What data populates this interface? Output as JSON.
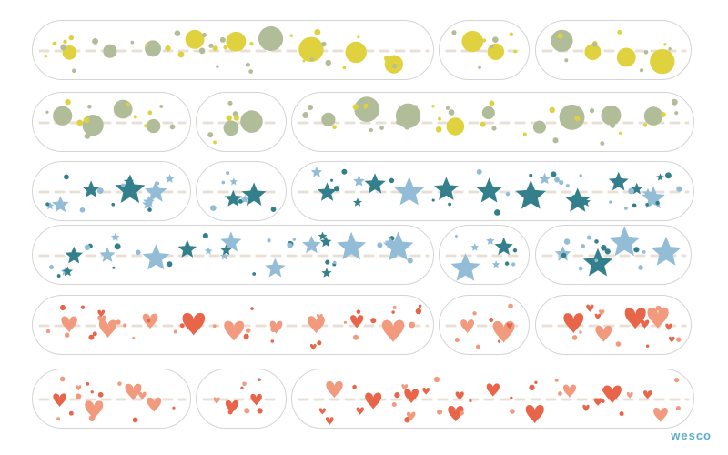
{
  "brand": {
    "name": "wesco",
    "color": "#5aaccf"
  },
  "palette": {
    "yellow": "#e0d23e",
    "sage": "#b1bd99",
    "teal": "#337f8c",
    "skyblue": "#93bdd7",
    "peach": "#f29a7e",
    "coral": "#e8654a",
    "dash": "#e8e0d6"
  },
  "rows": [
    {
      "motif": "circle",
      "primary": "yellow",
      "secondary": "sage"
    },
    {
      "motif": "circle",
      "primary": "sage",
      "secondary": "yellow"
    },
    {
      "motif": "star",
      "primary": "teal",
      "secondary": "skyblue"
    },
    {
      "motif": "star",
      "primary": "skyblue",
      "secondary": "teal"
    },
    {
      "motif": "heart",
      "primary": "peach",
      "secondary": "coral"
    },
    {
      "motif": "heart",
      "primary": "coral",
      "secondary": "peach"
    }
  ]
}
